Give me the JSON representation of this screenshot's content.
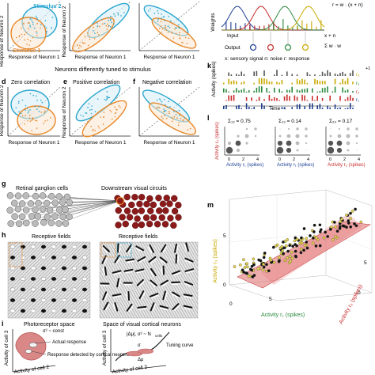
{
  "row1": {
    "stim2": "Stimulus 2",
    "stim1": "Stimulus 1",
    "ylabel": "Response of Neuron 2",
    "xlabel": "Response of Neuron 1"
  },
  "row2": {
    "section_title": "Neurons differently tuned to stimulus",
    "d": {
      "letter": "d",
      "title": "Zero correlation"
    },
    "e": {
      "letter": "e",
      "title": "Positive correlation"
    },
    "f": {
      "letter": "f",
      "title": "Negative correlation"
    },
    "ylabel": "Response of Neuron 2",
    "xlabel": "Response of Neuron 1"
  },
  "panel_j": {
    "weights": "Weights",
    "formula_top": "r = w · (x + n)",
    "input": "Input",
    "output": "Output",
    "formula_right": "Σ w · w",
    "xn": "x + n",
    "legend": "x: sensory signal   n: noise   r: response"
  },
  "panel_k": {
    "letter": "k",
    "ylabel": "Activity (spikes)",
    "time": "Time →",
    "r_labels": [
      "r₄",
      "r₃",
      "r₂",
      "r₁"
    ],
    "scale": "+1"
  },
  "panel_l": {
    "letter": "l",
    "plots": [
      {
        "sigma": "Σ₁₂ = 0.75",
        "xlabel": "Activity r₁ (spikes)",
        "ylabel": "Activity r₂ (spikes)"
      },
      {
        "sigma": "Σ₁₃ = 0.14",
        "xlabel": "Activity r₁ (spikes)",
        "ylabel": "Activity r₃ (spikes)"
      },
      {
        "sigma": "Σ₂₃ = 0.17",
        "xlabel": "Activity r₂ (spikes)",
        "ylabel": "Activity r₃ (spikes)"
      }
    ],
    "ticks": [
      "0",
      "2",
      "4"
    ]
  },
  "panel_g": {
    "letter": "g",
    "left": "Retinal ganglion cells",
    "right": "Downstream visual circuits"
  },
  "panel_h": {
    "letter": "h",
    "left": "Receptive fields",
    "right": "Receptive fields"
  },
  "panel_i": {
    "letter": "i",
    "left_title": "Photoreceptor space",
    "right_title": "Space of visual cortical neurons",
    "sigma_const": "σ² ~ const",
    "actual": "Actual response",
    "detected": "Response detected by cortical neurons",
    "delta_formula": "|Δμ|, σ² ~ N",
    "delta_sub": "cells",
    "tuning": "Tuning curve",
    "sigma": "σ",
    "delta_mu": "Δμ",
    "ylabel": "Activity of cell 3",
    "xlabel": "Activity of cell 2"
  },
  "panel_m": {
    "letter": "m",
    "xlabel": "Activity r₁ (spikes)",
    "ylabel": "Activity r₂ (spikes)",
    "zlabel": "Activity r₃ (spikes)",
    "ticks": [
      "0",
      "5",
      "0",
      "5",
      "0",
      "5"
    ]
  }
}
